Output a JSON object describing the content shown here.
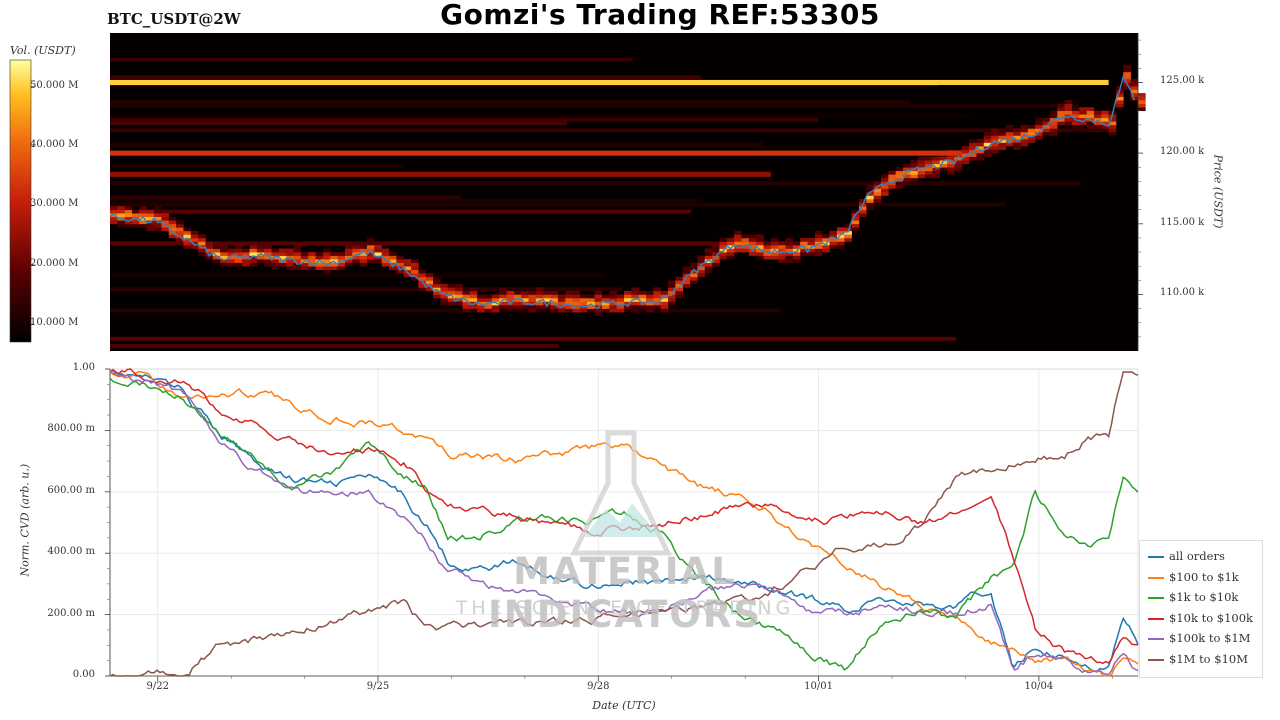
{
  "header": {
    "symbol": "BTC_USDT@2W",
    "title": "Gomzi's Trading REF:53305"
  },
  "colorbar": {
    "label": "Vol. (USDT)",
    "ticks": [
      "50.000 M",
      "40.000 M",
      "30.000 M",
      "20.000 M",
      "10.000 M"
    ]
  },
  "watermark": {
    "line1": "MATERIAL INDICATORS",
    "line2": "THE SCIENCE OF TRADING"
  },
  "chart_data": [
    {
      "type": "heatmap",
      "title": "",
      "ylabel": "Price (USDT)",
      "ylim": [
        106000,
        128500
      ],
      "y_ticks": [
        {
          "value": 125000,
          "label": "125.00 k"
        },
        {
          "value": 120000,
          "label": "120.00 k"
        },
        {
          "value": 115000,
          "label": "115.00 k"
        },
        {
          "value": 110000,
          "label": "110.00 k"
        }
      ],
      "xlim": [
        0,
        14
      ],
      "price_line": {
        "color": "#3a7fc0",
        "x": [
          0,
          0.6,
          1,
          1.5,
          2,
          2.5,
          3,
          3.5,
          4,
          4.5,
          5,
          5.3,
          5.6,
          6,
          6.5,
          7,
          7.5,
          8,
          8.5,
          9,
          9.5,
          10,
          10.3,
          10.6,
          11,
          11.5,
          12,
          12.5,
          13,
          13.3,
          13.6,
          13.8,
          14
        ],
        "y": [
          115500,
          115200,
          114000,
          112500,
          112700,
          112400,
          112200,
          113000,
          111800,
          110000,
          109300,
          109400,
          109500,
          109400,
          109200,
          109400,
          109500,
          111800,
          113600,
          113000,
          113200,
          114200,
          116800,
          118000,
          118800,
          119400,
          120700,
          121200,
          122700,
          122400,
          122100,
          125200,
          123500
        ]
      },
      "bright_bands": [
        {
          "price": 125000,
          "x_end": 13.6,
          "intensity": 1.0
        },
        {
          "price": 120000,
          "x_end": 11.6,
          "intensity": 0.65
        },
        {
          "price": 118500,
          "x_end": 9.0,
          "intensity": 0.45
        }
      ]
    },
    {
      "type": "line",
      "title": "",
      "xlabel": "Date (UTC)",
      "ylabel": "Norm. CVD (arb. u.)",
      "ylim": [
        0,
        1
      ],
      "xlim": [
        0,
        14
      ],
      "grid": true,
      "legend_placement": "right",
      "x_ticks": [
        {
          "value": 0.65,
          "label": "9/22"
        },
        {
          "value": 3.65,
          "label": "9/25"
        },
        {
          "value": 6.65,
          "label": "9/28"
        },
        {
          "value": 9.65,
          "label": "10/01"
        },
        {
          "value": 12.65,
          "label": "10/04"
        }
      ],
      "y_ticks": [
        {
          "value": 1.0,
          "label": "1.00"
        },
        {
          "value": 0.8,
          "label": "800.00 m"
        },
        {
          "value": 0.6,
          "label": "600.00 m"
        },
        {
          "value": 0.4,
          "label": "400.00 m"
        },
        {
          "value": 0.2,
          "label": "200.00 m"
        },
        {
          "value": 0.0,
          "label": "0.00"
        }
      ],
      "x": [
        0,
        0.5,
        1,
        1.5,
        2,
        2.5,
        3,
        3.5,
        4,
        4.3,
        4.6,
        5,
        5.5,
        6,
        6.5,
        7,
        7.5,
        8,
        8.5,
        9,
        9.5,
        10,
        10.5,
        11,
        11.5,
        12,
        12.3,
        12.6,
        13,
        13.3,
        13.6,
        13.8,
        14
      ],
      "series": [
        {
          "name": "all orders",
          "color": "#1f77b4",
          "values": [
            1.0,
            0.97,
            0.93,
            0.78,
            0.7,
            0.64,
            0.62,
            0.65,
            0.58,
            0.5,
            0.38,
            0.35,
            0.37,
            0.33,
            0.3,
            0.31,
            0.3,
            0.32,
            0.3,
            0.28,
            0.25,
            0.22,
            0.25,
            0.24,
            0.22,
            0.28,
            0.02,
            0.1,
            0.06,
            0.04,
            0.03,
            0.18,
            0.1
          ]
        },
        {
          "name": "$100 to $1k",
          "color": "#ff7f0e",
          "values": [
            1.0,
            0.97,
            0.9,
            0.92,
            0.92,
            0.88,
            0.85,
            0.83,
            0.8,
            0.77,
            0.72,
            0.71,
            0.7,
            0.72,
            0.74,
            0.75,
            0.68,
            0.62,
            0.58,
            0.52,
            0.44,
            0.38,
            0.3,
            0.24,
            0.18,
            0.12,
            0.08,
            0.06,
            0.04,
            0.02,
            0.0,
            0.06,
            0.04
          ]
        },
        {
          "name": "$1k to $10k",
          "color": "#2ca02c",
          "values": [
            0.98,
            0.95,
            0.92,
            0.78,
            0.7,
            0.62,
            0.65,
            0.74,
            0.66,
            0.62,
            0.45,
            0.45,
            0.5,
            0.52,
            0.5,
            0.52,
            0.48,
            0.32,
            0.22,
            0.16,
            0.08,
            0.02,
            0.18,
            0.22,
            0.18,
            0.32,
            0.34,
            0.6,
            0.46,
            0.42,
            0.44,
            0.65,
            0.6
          ]
        },
        {
          "name": "$10k to $100k",
          "color": "#d62728",
          "values": [
            1.0,
            0.98,
            0.96,
            0.87,
            0.82,
            0.76,
            0.72,
            0.74,
            0.7,
            0.62,
            0.55,
            0.54,
            0.52,
            0.5,
            0.48,
            0.48,
            0.5,
            0.52,
            0.55,
            0.56,
            0.5,
            0.52,
            0.54,
            0.5,
            0.52,
            0.58,
            0.38,
            0.15,
            0.08,
            0.05,
            0.04,
            0.12,
            0.1
          ]
        },
        {
          "name": "$100k to $1M",
          "color": "#9467bd",
          "values": [
            1.0,
            0.96,
            0.92,
            0.75,
            0.66,
            0.62,
            0.58,
            0.6,
            0.52,
            0.45,
            0.34,
            0.3,
            0.28,
            0.24,
            0.22,
            0.2,
            0.22,
            0.26,
            0.3,
            0.28,
            0.22,
            0.2,
            0.24,
            0.22,
            0.2,
            0.24,
            0.02,
            0.08,
            0.06,
            0.02,
            0.02,
            0.08,
            0.02
          ]
        },
        {
          "name": "$1M to $10M",
          "color": "#8c564b",
          "values": [
            0.01,
            0.01,
            0.01,
            0.1,
            0.12,
            0.15,
            0.18,
            0.21,
            0.24,
            0.16,
            0.16,
            0.17,
            0.16,
            0.18,
            0.18,
            0.2,
            0.21,
            0.22,
            0.24,
            0.28,
            0.34,
            0.42,
            0.44,
            0.48,
            0.64,
            0.68,
            0.7,
            0.72,
            0.72,
            0.78,
            0.78,
            1.0,
            0.96
          ]
        }
      ]
    }
  ]
}
